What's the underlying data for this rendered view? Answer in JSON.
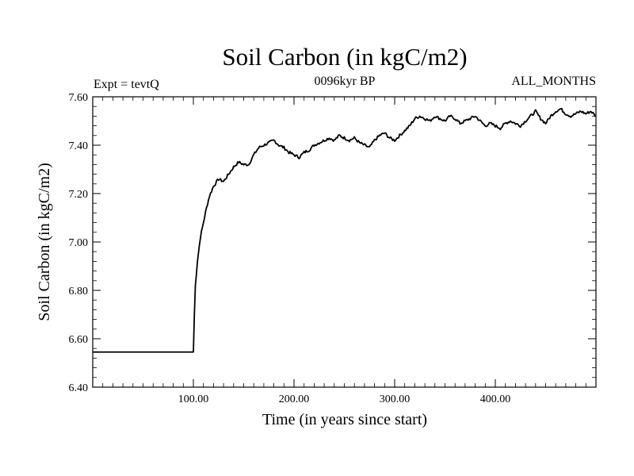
{
  "chart_data": {
    "type": "line",
    "title": "Soil Carbon (in kgC/m2)",
    "subtitle_left": "Expt = tevtQ",
    "subtitle_center": "0096kyr BP",
    "subtitle_right": "ALL_MONTHS",
    "xlabel": "Time (in years since start)",
    "ylabel": "Soil Carbon (in kgC/m2)",
    "xlim": [
      0,
      500
    ],
    "ylim": [
      6.4,
      7.6
    ],
    "xticks": [
      100,
      200,
      300,
      400
    ],
    "xtick_labels": [
      "100.00",
      "200.00",
      "300.00",
      "400.00"
    ],
    "yticks": [
      6.4,
      6.6,
      6.8,
      7.0,
      7.2,
      7.4,
      7.6
    ],
    "ytick_labels": [
      "6.40",
      "6.60",
      "6.80",
      "7.00",
      "7.20",
      "7.40",
      "7.60"
    ],
    "series": [
      {
        "name": "Soil Carbon",
        "color": "#000000",
        "points": [
          [
            0,
            6.545
          ],
          [
            100,
            6.545
          ],
          [
            101,
            6.7
          ],
          [
            102,
            6.82
          ],
          [
            104,
            6.92
          ],
          [
            107,
            7.02
          ],
          [
            110,
            7.08
          ],
          [
            113,
            7.14
          ],
          [
            116,
            7.19
          ],
          [
            120,
            7.23
          ],
          [
            125,
            7.26
          ],
          [
            130,
            7.25
          ],
          [
            135,
            7.28
          ],
          [
            140,
            7.31
          ],
          [
            145,
            7.33
          ],
          [
            150,
            7.32
          ],
          [
            155,
            7.32
          ],
          [
            160,
            7.36
          ],
          [
            165,
            7.39
          ],
          [
            170,
            7.4
          ],
          [
            175,
            7.41
          ],
          [
            180,
            7.42
          ],
          [
            185,
            7.4
          ],
          [
            190,
            7.39
          ],
          [
            195,
            7.37
          ],
          [
            200,
            7.36
          ],
          [
            205,
            7.35
          ],
          [
            210,
            7.37
          ],
          [
            215,
            7.38
          ],
          [
            220,
            7.4
          ],
          [
            225,
            7.41
          ],
          [
            230,
            7.42
          ],
          [
            235,
            7.43
          ],
          [
            240,
            7.42
          ],
          [
            245,
            7.44
          ],
          [
            250,
            7.43
          ],
          [
            255,
            7.42
          ],
          [
            260,
            7.43
          ],
          [
            265,
            7.41
          ],
          [
            270,
            7.4
          ],
          [
            275,
            7.39
          ],
          [
            280,
            7.42
          ],
          [
            285,
            7.44
          ],
          [
            290,
            7.45
          ],
          [
            295,
            7.43
          ],
          [
            300,
            7.42
          ],
          [
            305,
            7.44
          ],
          [
            310,
            7.46
          ],
          [
            315,
            7.48
          ],
          [
            320,
            7.51
          ],
          [
            325,
            7.52
          ],
          [
            330,
            7.51
          ],
          [
            335,
            7.5
          ],
          [
            340,
            7.52
          ],
          [
            345,
            7.51
          ],
          [
            350,
            7.5
          ],
          [
            355,
            7.52
          ],
          [
            360,
            7.51
          ],
          [
            365,
            7.49
          ],
          [
            370,
            7.5
          ],
          [
            375,
            7.51
          ],
          [
            380,
            7.52
          ],
          [
            385,
            7.5
          ],
          [
            390,
            7.48
          ],
          [
            395,
            7.49
          ],
          [
            400,
            7.48
          ],
          [
            405,
            7.47
          ],
          [
            410,
            7.49
          ],
          [
            415,
            7.5
          ],
          [
            420,
            7.49
          ],
          [
            425,
            7.48
          ],
          [
            430,
            7.5
          ],
          [
            435,
            7.52
          ],
          [
            440,
            7.54
          ],
          [
            445,
            7.51
          ],
          [
            450,
            7.49
          ],
          [
            455,
            7.52
          ],
          [
            460,
            7.54
          ],
          [
            465,
            7.55
          ],
          [
            470,
            7.53
          ],
          [
            475,
            7.52
          ],
          [
            480,
            7.53
          ],
          [
            485,
            7.54
          ],
          [
            490,
            7.53
          ],
          [
            495,
            7.54
          ],
          [
            500,
            7.52
          ]
        ]
      }
    ]
  }
}
